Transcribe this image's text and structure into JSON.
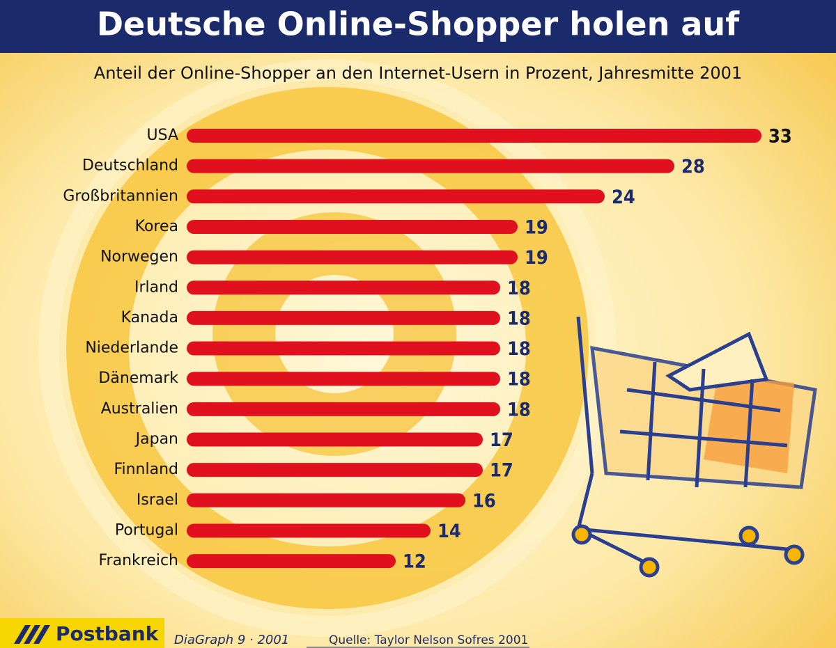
{
  "chart_data": {
    "type": "bar",
    "orientation": "horizontal",
    "title": "Deutsche Online-Shopper holen auf",
    "subtitle": "Anteil der Online-Shopper an den Internet-Usern in Prozent, Jahresmitte 2001",
    "categories": [
      "USA",
      "Deutschland",
      "Großbritannien",
      "Korea",
      "Norwegen",
      "Irland",
      "Kanada",
      "Niederlande",
      "Dänemark",
      "Australien",
      "Japan",
      "Finnland",
      "Israel",
      "Portugal",
      "Frankreich"
    ],
    "values": [
      33,
      28,
      24,
      19,
      19,
      18,
      18,
      18,
      18,
      18,
      17,
      17,
      16,
      14,
      12
    ],
    "color": "#e0101e",
    "logo": "Postbank",
    "credit": "DiaGraph 9 · 2001",
    "source": "Quelle: Taylor Nelson Sofres 2001"
  }
}
